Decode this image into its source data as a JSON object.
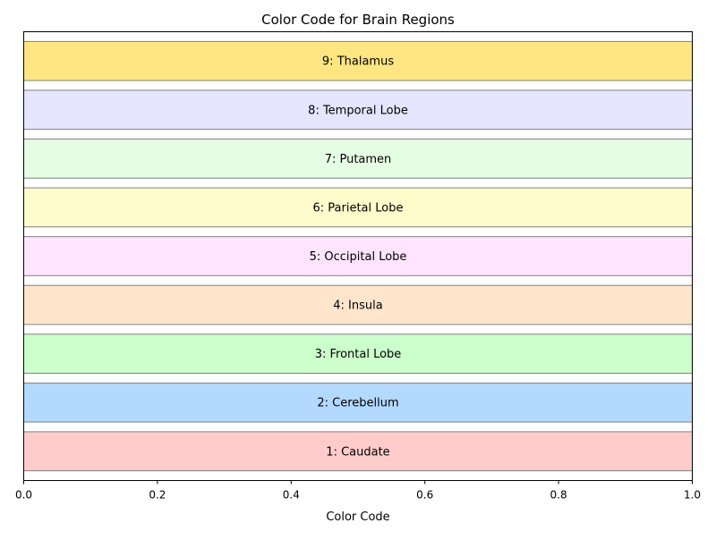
{
  "chart_data": {
    "type": "bar",
    "orientation": "horizontal",
    "title": "Color Code for Brain Regions",
    "xlabel": "Color Code",
    "ylabel": "",
    "xlim": [
      0,
      1.0
    ],
    "x_ticks": [
      "0.0",
      "0.2",
      "0.4",
      "0.6",
      "0.8",
      "1.0"
    ],
    "grid": false,
    "legend": "none",
    "categories": [
      "1: Caudate",
      "2: Cerebellum",
      "3: Frontal Lobe",
      "4: Insula",
      "5: Occipital Lobe",
      "6: Parietal Lobe",
      "7: Putamen",
      "8: Temporal Lobe",
      "9: Thalamus"
    ],
    "values": [
      1,
      1,
      1,
      1,
      1,
      1,
      1,
      1,
      1
    ],
    "colors": [
      "#FFCCCC",
      "#B3D9FF",
      "#CCFFCC",
      "#FFE5CC",
      "#FFE5FF",
      "#FFFCCC",
      "#E5FFE5",
      "#E5E5FF",
      "#FFE680"
    ],
    "edge_color": "#808080"
  }
}
